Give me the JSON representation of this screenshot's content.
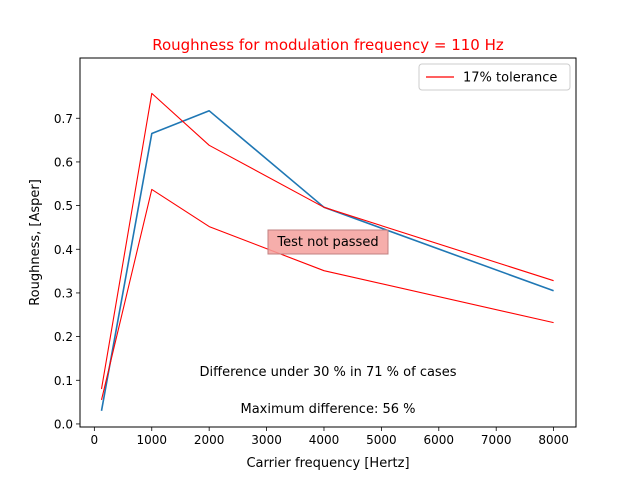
{
  "chart_data": {
    "type": "line",
    "title": "Roughness for modulation frequency = 110 Hz",
    "xlabel": "Carrier frequency [Hertz]",
    "ylabel": "Roughness, [Asper]",
    "xlim": [
      -250,
      8390
    ],
    "ylim": [
      -0.007,
      0.838
    ],
    "x_ticks": [
      0,
      1000,
      2000,
      3000,
      4000,
      5000,
      6000,
      7000,
      8000
    ],
    "y_ticks": [
      0.0,
      0.1,
      0.2,
      0.3,
      0.4,
      0.5,
      0.6,
      0.7
    ],
    "grid": false,
    "legend_position": "top-right",
    "series": [
      {
        "name": "",
        "color": "#1f77b4",
        "x": [
          125,
          1000,
          2000,
          4000,
          8000
        ],
        "y": [
          0.03,
          0.665,
          0.717,
          0.496,
          0.305
        ]
      },
      {
        "name": "17% tolerance",
        "color": "#ff0000",
        "x": [
          125,
          1000,
          2000,
          4000,
          8000
        ],
        "y": [
          0.08,
          0.757,
          0.638,
          0.496,
          0.328
        ]
      },
      {
        "name": "",
        "color": "#ff0000",
        "x": [
          125,
          1000,
          2000,
          4000,
          8000
        ],
        "y": [
          0.055,
          0.537,
          0.452,
          0.351,
          0.232
        ]
      }
    ],
    "annotations": {
      "status": "Test not passed",
      "difference_text": "Difference under 30 % in 71 % of cases",
      "max_difference_text": "Maximum difference: 56 %"
    },
    "colors": {
      "title": "#ff0000",
      "status_box": "#f4a09c"
    }
  }
}
